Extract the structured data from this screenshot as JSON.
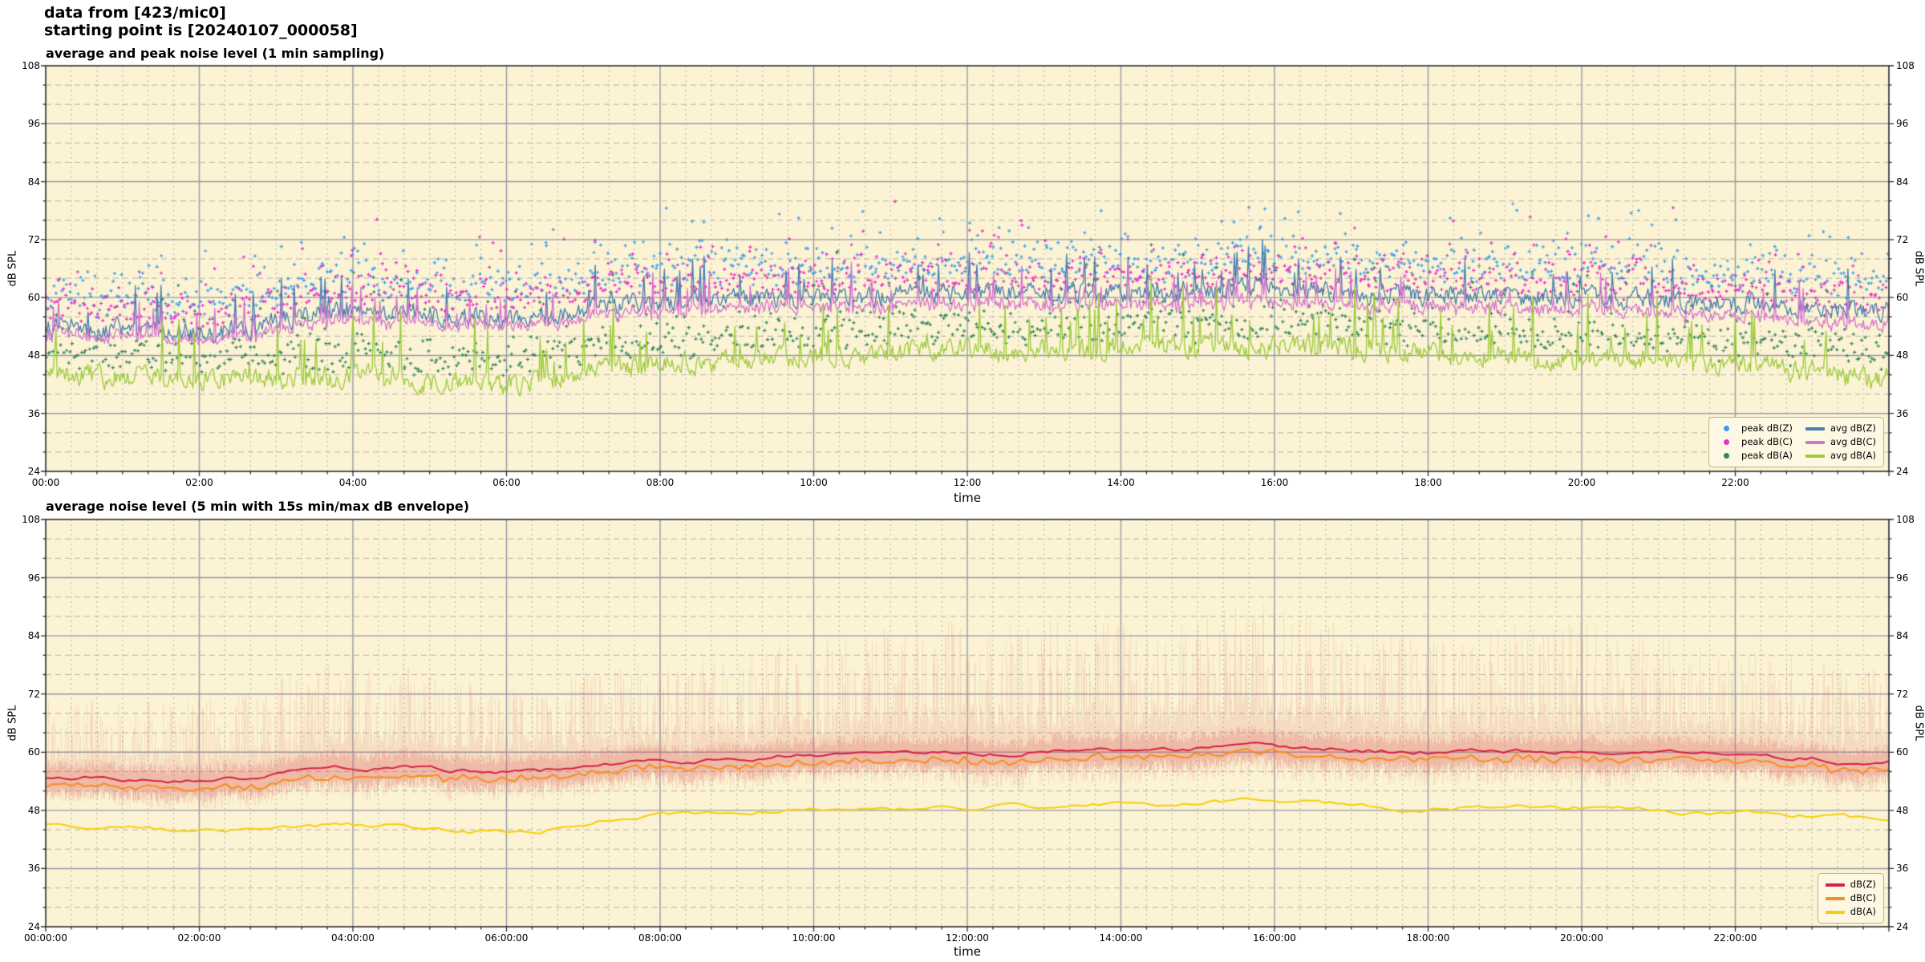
{
  "seed": 20240107,
  "header": {
    "line1": "data from [423/mic0]",
    "line2": "starting point is [20240107_000058]"
  },
  "colors": {
    "figure_bg": "#ffffff",
    "plot_bg": "#fbf3d3",
    "grid_major": "#979aa8",
    "grid_minor": "#b5b3ae",
    "spine": "#2b2b2b",
    "legend_bg": "#fdf8e3",
    "legend_border": "#c3b37c"
  },
  "charts": [
    {
      "title": "average and peak noise level (1 min sampling)",
      "xlabel": "time",
      "ylabel_left": "dB SPL",
      "ylabel_right": "dB SPL",
      "legend": {
        "position": "lower right",
        "items": [
          {
            "label": "peak dB(Z)",
            "color": "#3e9dea",
            "marker": "dot"
          },
          {
            "label": "peak dB(C)",
            "color": "#e92ec9",
            "marker": "dot"
          },
          {
            "label": "peak dB(A)",
            "color": "#35855c",
            "marker": "dot"
          },
          {
            "label": "avg dB(Z)",
            "color": "#4a7db0",
            "marker": "line"
          },
          {
            "label": "avg dB(C)",
            "color": "#d773d1",
            "marker": "line"
          },
          {
            "label": "avg dB(A)",
            "color": "#9dcb3c",
            "marker": "line"
          }
        ]
      },
      "chart_data": {
        "type": "line+scatter",
        "sampling": "1 min (1440 points over 24 h)",
        "ylim": [
          24,
          108
        ],
        "y_ticks": [
          24,
          36,
          48,
          60,
          72,
          84,
          96,
          108
        ],
        "y_minor_every_dB": 4,
        "x_minor_every_minutes": 20,
        "x_tick_labels": [
          "00:00",
          "02:00",
          "04:00",
          "06:00",
          "08:00",
          "10:00",
          "12:00",
          "14:00",
          "16:00",
          "18:00",
          "20:00",
          "22:00"
        ],
        "keyframe_hours": [
          0,
          2,
          4,
          6,
          8,
          10,
          12,
          14,
          16,
          18,
          20,
          22,
          24
        ],
        "series": [
          {
            "name": "avg dB(Z)",
            "style": "line",
            "color": "#4a7db0",
            "width": 1.35,
            "keyframes_dB": [
              54,
              53,
              57,
              56,
              59,
              60,
              61,
              61,
              62,
              60.5,
              60,
              59,
              57
            ],
            "sigma_dB": 1.7,
            "spike_prob": 0.05,
            "spike_max_dB": 9
          },
          {
            "name": "avg dB(C)",
            "style": "line",
            "color": "#d773d1",
            "width": 1.35,
            "keyframes_dB": [
              52.5,
              51.5,
              55,
              54.5,
              57,
              58,
              58.5,
              58.5,
              59,
              58,
              57.5,
              56.5,
              54
            ],
            "sigma_dB": 1.5,
            "spike_prob": 0.04,
            "spike_max_dB": 8,
            "follows": "avg dB(Z)",
            "follow_coupling": 0.6
          },
          {
            "name": "avg dB(A)",
            "style": "line",
            "color": "#9dcb3c",
            "width": 1.35,
            "keyframes_dB": [
              44,
              43,
              43.5,
              42,
              46,
              48,
              49,
              49.5,
              50,
              48.5,
              47.5,
              46,
              43
            ],
            "sigma_dB": 1.9,
            "spike_prob": 0.06,
            "spike_max_dB": 13
          }
        ],
        "scatter": [
          {
            "name": "peak dB(Z)",
            "color": "#3e9dea",
            "marker": "+",
            "above": "avg dB(Z)",
            "min_offset_dB": 4,
            "spread_dB": 6.5,
            "max_dB": 88
          },
          {
            "name": "peak dB(C)",
            "color": "#e92ec9",
            "marker": "+",
            "above": "avg dB(C)",
            "min_offset_dB": 3.5,
            "spread_dB": 6,
            "max_dB": 84
          },
          {
            "name": "peak dB(A)",
            "color": "#35855c",
            "marker": "+",
            "above": "avg dB(A)",
            "min_offset_dB": 3,
            "spread_dB": 5,
            "max_dB": 72
          }
        ]
      }
    },
    {
      "title": "average noise level (5 min with 15s min/max dB envelope)",
      "xlabel": "time",
      "ylabel_left": "dB SPL",
      "ylabel_right": "dB SPL",
      "legend": {
        "position": "lower right",
        "items": [
          {
            "label": "dB(Z)",
            "color": "#d62246",
            "marker": "line"
          },
          {
            "label": "dB(C)",
            "color": "#f78e1e",
            "marker": "line"
          },
          {
            "label": "dB(A)",
            "color": "#f5cf0f",
            "marker": "line"
          }
        ]
      },
      "chart_data": {
        "type": "line+envelope",
        "sampling": "5 min averages (288 points), 15 s min/max envelope",
        "ylim": [
          24,
          108
        ],
        "y_ticks": [
          24,
          36,
          48,
          60,
          72,
          84,
          96,
          108
        ],
        "y_minor_every_dB": 4,
        "x_minor_every_minutes": 20,
        "x_tick_labels": [
          "00:00:00",
          "02:00:00",
          "04:00:00",
          "06:00:00",
          "08:00:00",
          "10:00:00",
          "12:00:00",
          "14:00:00",
          "16:00:00",
          "18:00:00",
          "20:00:00",
          "22:00:00"
        ],
        "keyframe_hours": [
          0,
          2,
          4,
          6,
          8,
          10,
          12,
          14,
          16,
          18,
          20,
          22,
          24
        ],
        "series": [
          {
            "name": "dB(Z)",
            "style": "line",
            "color": "#d62246",
            "width": 2,
            "keyframes_dB": [
              55,
              54,
              57,
              56,
              58,
              59.5,
              60,
              60.5,
              61,
              60,
              60.5,
              59.5,
              58
            ],
            "sigma_dB": 0.9
          },
          {
            "name": "dB(C)",
            "style": "line",
            "color": "#f78e1e",
            "width": 2,
            "keyframes_dB": [
              53.5,
              52.5,
              55,
              54.5,
              56.5,
              58,
              58.5,
              59,
              59.5,
              58.5,
              59,
              58,
              56.5
            ],
            "sigma_dB": 0.8,
            "follows": "dB(Z)",
            "follow_coupling": 0.7
          },
          {
            "name": "dB(A)",
            "style": "line",
            "color": "#f5cf0f",
            "width": 2,
            "keyframes_dB": [
              45.5,
              44,
              45,
              43.5,
              47,
              48.5,
              48.5,
              49,
              50,
              48.5,
              48.5,
              47.5,
              46
            ],
            "sigma_dB": 0.9
          }
        ],
        "envelope": {
          "of": "dB(Z)",
          "color": "rgba(222,100,100,0.17)",
          "core_color": "rgba(222,100,100,0.28)",
          "min_below_dB": [
            5,
            6,
            6,
            6,
            6,
            6,
            7,
            7,
            7,
            7,
            7,
            6,
            6
          ],
          "max_above_dB": [
            14,
            15,
            20,
            16,
            18,
            22,
            26,
            24,
            27,
            22,
            25,
            20,
            18
          ]
        }
      }
    }
  ]
}
